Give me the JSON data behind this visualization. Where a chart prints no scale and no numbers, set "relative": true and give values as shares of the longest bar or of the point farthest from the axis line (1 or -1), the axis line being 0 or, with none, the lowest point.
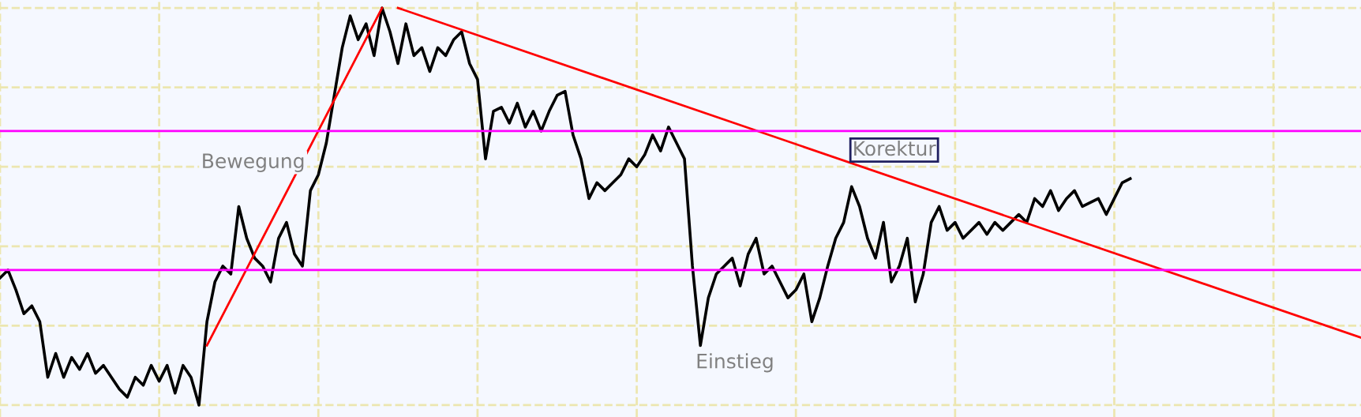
{
  "chart_data": {
    "type": "line",
    "relative": true,
    "grid": true,
    "categories": [
      null,
      null,
      null,
      null,
      null,
      null,
      null,
      null,
      null,
      null,
      null,
      null,
      null,
      null,
      null,
      null,
      null,
      null,
      null,
      null,
      null,
      null,
      null,
      null,
      null,
      null,
      null,
      null,
      null,
      null,
      null,
      null,
      null,
      null,
      null,
      null,
      null,
      null,
      null,
      null,
      null,
      null,
      null,
      null,
      null,
      null,
      null,
      null,
      null,
      null,
      null,
      null,
      null,
      null,
      null,
      null,
      null,
      null,
      null,
      null,
      null,
      null,
      null,
      null,
      null,
      null,
      null,
      null,
      null,
      null,
      null,
      null,
      null,
      null,
      null,
      null,
      null,
      null,
      null,
      null,
      null,
      null,
      null,
      null,
      null,
      null,
      null,
      null,
      null,
      null,
      null,
      null,
      null,
      null,
      null,
      null,
      null,
      null,
      null,
      null,
      null,
      null,
      null,
      null,
      null,
      null,
      null,
      null,
      null,
      null,
      null,
      null,
      null,
      null,
      null,
      null,
      null,
      null,
      null,
      null,
      null,
      null,
      null,
      null,
      null,
      null,
      null,
      null,
      null,
      null,
      null,
      null,
      null,
      null,
      null,
      null,
      null,
      null,
      null,
      null,
      null,
      null,
      null,
      null,
      null,
      null,
      null,
      null,
      null,
      null,
      null,
      null,
      null,
      null,
      null,
      null,
      null,
      null,
      null,
      null,
      null,
      null,
      null,
      null,
      null,
      null,
      null,
      null,
      null,
      null,
      null,
      null
    ],
    "series": [
      {
        "color": "#000000",
        "values": [
          0.32,
          0.34,
          0.29,
          0.23,
          0.25,
          0.21,
          0.07,
          0.13,
          0.07,
          0.12,
          0.09,
          0.13,
          0.08,
          0.1,
          0.07,
          0.04,
          0.02,
          0.07,
          0.05,
          0.1,
          0.06,
          0.1,
          0.03,
          0.1,
          0.07,
          0,
          0.21,
          0.31,
          0.35,
          0.33,
          0.5,
          0.42,
          0.37,
          0.35,
          0.31,
          0.42,
          0.46,
          0.38,
          0.35,
          0.54,
          0.58,
          0.66,
          0.78,
          0.9,
          0.98,
          0.92,
          0.96,
          0.88,
          1,
          0.94,
          0.86,
          0.96,
          0.88,
          0.9,
          0.84,
          0.9,
          0.88,
          0.92,
          0.94,
          0.86,
          0.82,
          0.62,
          0.74,
          0.75,
          0.71,
          0.76,
          0.7,
          0.74,
          0.69,
          0.74,
          0.78,
          0.79,
          0.68,
          0.62,
          0.52,
          0.56,
          0.54,
          0.56,
          0.58,
          0.62,
          0.6,
          0.63,
          0.68,
          0.64,
          0.7,
          0.66,
          0.62,
          0.35,
          0.15,
          0.27,
          0.33,
          0.35,
          0.37,
          0.3,
          0.38,
          0.42,
          0.33,
          0.35,
          0.31,
          0.27,
          0.29,
          0.33,
          0.21,
          0.27,
          0.35,
          0.42,
          0.46,
          0.55,
          0.5,
          0.42,
          0.37,
          0.46,
          0.31,
          0.35,
          0.42,
          0.26,
          0.33,
          0.46,
          0.5,
          0.44,
          0.46,
          0.42,
          0.44,
          0.46,
          0.43,
          0.46,
          0.44,
          0.46,
          0.48,
          0.46,
          0.52,
          0.5,
          0.54,
          0.49,
          0.52,
          0.54,
          0.5,
          0.51,
          0.52,
          0.48,
          0.52,
          0.56,
          0.57,
          null,
          null,
          null,
          null,
          null,
          null,
          null,
          null,
          null,
          null,
          null,
          null,
          null,
          null,
          null,
          null,
          null,
          null,
          null,
          null,
          null,
          null,
          null,
          null,
          null,
          null,
          null,
          null,
          null
        ]
      },
      {
        "type": "line",
        "color": "#ff0000",
        "values": [
          null,
          null,
          null,
          null,
          null,
          null,
          null,
          null,
          null,
          null,
          null,
          null,
          null,
          null,
          null,
          null,
          null,
          null,
          null,
          null,
          null,
          null,
          null,
          null,
          null,
          null,
          0.15,
          null,
          null,
          null,
          null,
          null,
          null,
          null,
          null,
          null,
          null,
          null,
          null,
          null,
          null,
          null,
          null,
          null,
          null,
          null,
          null,
          null,
          1,
          null,
          null,
          null,
          null,
          null,
          null,
          null,
          null,
          null,
          null,
          null,
          null,
          null,
          null,
          null,
          null,
          null,
          null,
          null,
          null,
          null,
          null,
          null,
          null,
          null,
          null,
          null,
          null,
          null,
          null,
          null,
          null,
          null,
          null,
          null,
          null,
          null,
          null,
          null,
          null,
          null,
          null,
          null,
          null,
          null,
          null,
          null,
          null,
          null,
          null,
          null,
          null,
          null,
          null,
          null,
          null,
          null,
          null,
          null,
          null,
          null,
          null,
          null,
          null,
          null,
          null,
          null,
          null,
          null,
          null,
          null,
          null,
          null,
          null,
          null,
          null,
          null,
          null,
          null,
          null,
          null,
          null,
          null,
          null,
          null,
          null,
          null,
          null,
          null,
          null,
          null,
          null,
          null,
          null,
          null,
          null,
          null,
          null,
          null,
          null,
          null,
          null,
          null,
          null,
          null,
          null,
          null,
          null,
          null,
          null,
          null,
          null,
          null,
          null,
          null,
          null,
          null,
          null,
          null,
          null,
          null,
          null,
          null
        ]
      },
      {
        "type": "line",
        "color": "#ff0000",
        "values": [
          null,
          null,
          null,
          null,
          null,
          null,
          null,
          null,
          null,
          null,
          null,
          null,
          null,
          null,
          null,
          null,
          null,
          null,
          null,
          null,
          null,
          null,
          null,
          null,
          null,
          null,
          null,
          null,
          null,
          null,
          null,
          null,
          null,
          null,
          null,
          null,
          null,
          null,
          null,
          null,
          null,
          null,
          null,
          null,
          null,
          null,
          null,
          null,
          null,
          null,
          1,
          null,
          null,
          null,
          null,
          null,
          null,
          null,
          null,
          null,
          null,
          null,
          null,
          null,
          null,
          null,
          null,
          null,
          null,
          null,
          null,
          null,
          null,
          null,
          null,
          null,
          null,
          null,
          null,
          null,
          null,
          null,
          null,
          null,
          null,
          null,
          null,
          null,
          null,
          null,
          null,
          null,
          null,
          null,
          null,
          null,
          null,
          null,
          null,
          null,
          null,
          null,
          null,
          null,
          null,
          null,
          null,
          null,
          null,
          null,
          null,
          null,
          null,
          null,
          null,
          null,
          null,
          null,
          null,
          null,
          null,
          null,
          null,
          null,
          null,
          null,
          null,
          null,
          null,
          null,
          null,
          null,
          null,
          null,
          null,
          null,
          null,
          null,
          null,
          null,
          null,
          null,
          null,
          null,
          null,
          null,
          null,
          null,
          null,
          null,
          null,
          null,
          null,
          null,
          null,
          null,
          null,
          null,
          null,
          null,
          null,
          null,
          null,
          null,
          null,
          null,
          null,
          null,
          null,
          null,
          null,
          0.17
        ]
      }
    ],
    "ref_lines": [
      {
        "axis": "y",
        "value": 0.69,
        "color": "#ff00ff"
      },
      {
        "axis": "y",
        "value": 0.34,
        "color": "#ff00ff"
      }
    ],
    "annotations": [
      "Bewegung",
      "Einstieg",
      "Korektur"
    ]
  }
}
